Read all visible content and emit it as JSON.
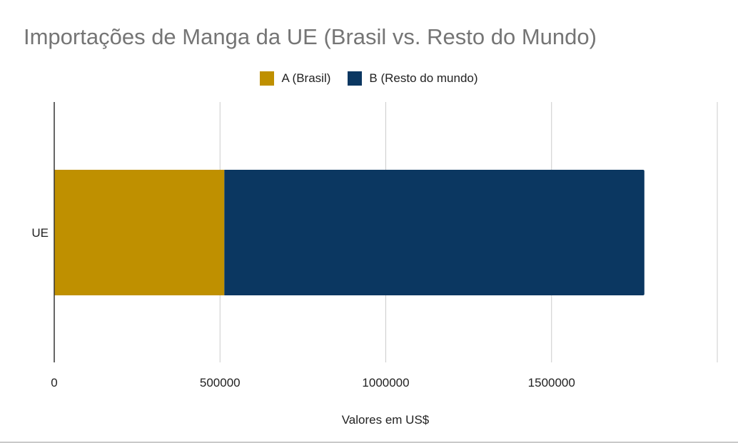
{
  "chart_data": {
    "type": "bar",
    "orientation": "horizontal",
    "stacked": true,
    "title": "Importações de Manga da UE (Brasil vs. Resto do Mundo)",
    "categories": [
      "UE"
    ],
    "series": [
      {
        "name": "A (Brasil)",
        "values": [
          513000
        ],
        "color": "#bf9000"
      },
      {
        "name": "B (Resto do mundo)",
        "values": [
          1267000
        ],
        "color": "#0b3761"
      }
    ],
    "xlabel": "Valores em US$",
    "ylabel": "",
    "xlim": [
      0,
      2000000
    ],
    "xticks": [
      0,
      500000,
      1000000,
      1500000
    ],
    "xtick_labels": [
      "0",
      "500000",
      "1000000",
      "1500000"
    ],
    "grid": true,
    "legend_position": "top"
  }
}
